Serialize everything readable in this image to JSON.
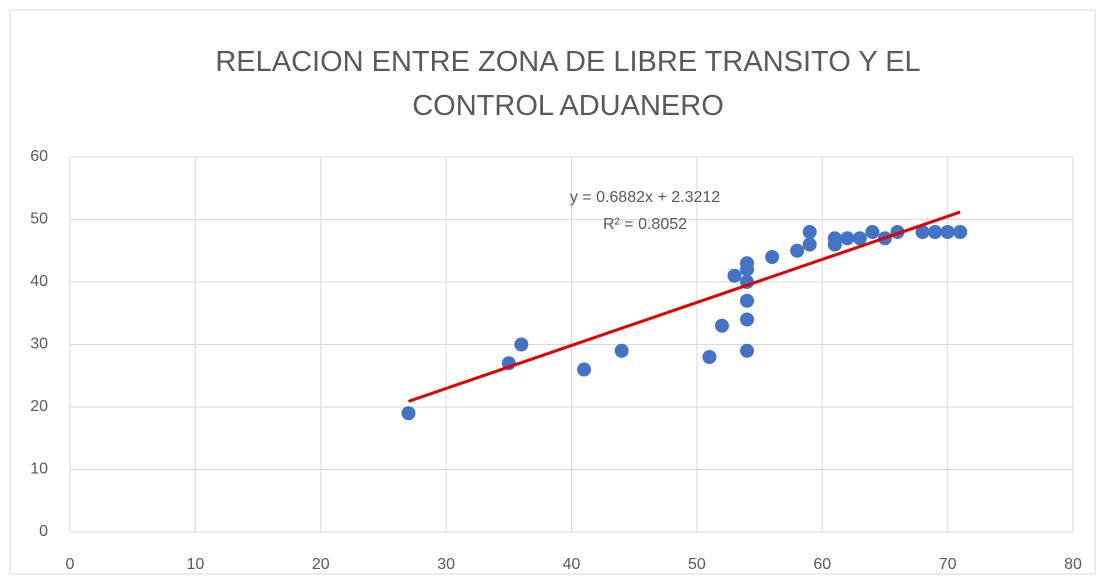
{
  "chart_data": {
    "type": "scatter",
    "title": "RELACION ENTRE ZONA DE LIBRE TRANSITO Y EL CONTROL ADUANERO",
    "x": [
      27,
      35,
      36,
      41,
      44,
      51,
      52,
      53,
      54,
      54,
      54,
      54,
      54,
      54,
      56,
      58,
      59,
      59,
      61,
      61,
      62,
      63,
      64,
      65,
      66,
      68,
      69,
      70,
      71
    ],
    "values": [
      19,
      27,
      30,
      26,
      29,
      28,
      33,
      41,
      43,
      42,
      40,
      37,
      34,
      29,
      44,
      45,
      48,
      46,
      47,
      46,
      47,
      47,
      48,
      47,
      48,
      48,
      48,
      48,
      48
    ],
    "color": "#4472c4",
    "xlim": [
      0,
      80
    ],
    "xticks": [
      0,
      10,
      20,
      30,
      40,
      50,
      60,
      70,
      80
    ],
    "ylim": [
      0,
      60
    ],
    "yticks": [
      0,
      10,
      20,
      30,
      40,
      50,
      60
    ],
    "grid": true,
    "trendline": {
      "equation": "y = 0.6882x + 2.3212",
      "r2_label": "R² = 0.8052",
      "slope": 0.6882,
      "intercept": 2.3212,
      "color": "#e00000"
    }
  }
}
